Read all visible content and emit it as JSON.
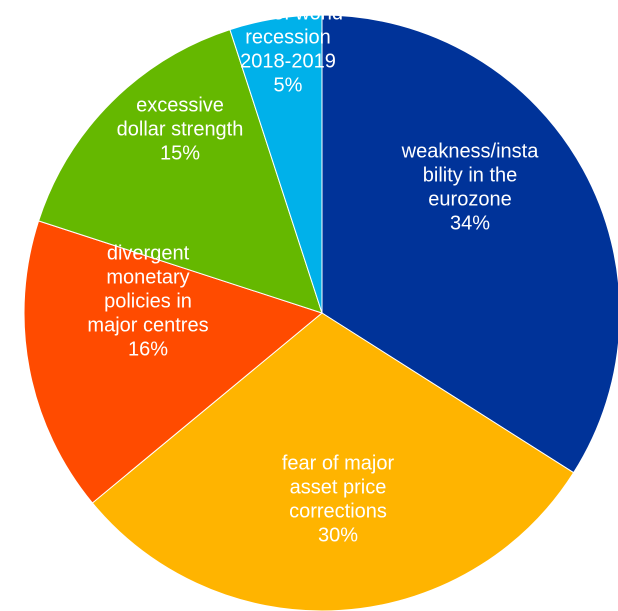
{
  "chart_data": {
    "type": "pie",
    "title": "",
    "slices": [
      {
        "label_lines": [
          "weakness/insta",
          "bility in the",
          "eurozone"
        ],
        "value_label": "34%",
        "value": 34,
        "color": "#003399"
      },
      {
        "label_lines": [
          "fear of major",
          "asset price",
          "corrections"
        ],
        "value_label": "30%",
        "value": 30,
        "color": "#FFB400"
      },
      {
        "label_lines": [
          "divergent",
          "monetary",
          "policies in",
          "major centres"
        ],
        "value_label": "16%",
        "value": 16,
        "color": "#FF4B00"
      },
      {
        "label_lines": [
          "excessive",
          "dollar strength"
        ],
        "value_label": "15%",
        "value": 15,
        "color": "#65B800"
      },
      {
        "label_lines": [
          "fear of world",
          "recession",
          "2018-2019"
        ],
        "value_label": "5%",
        "value": 5,
        "color": "#00B1EA"
      }
    ]
  }
}
